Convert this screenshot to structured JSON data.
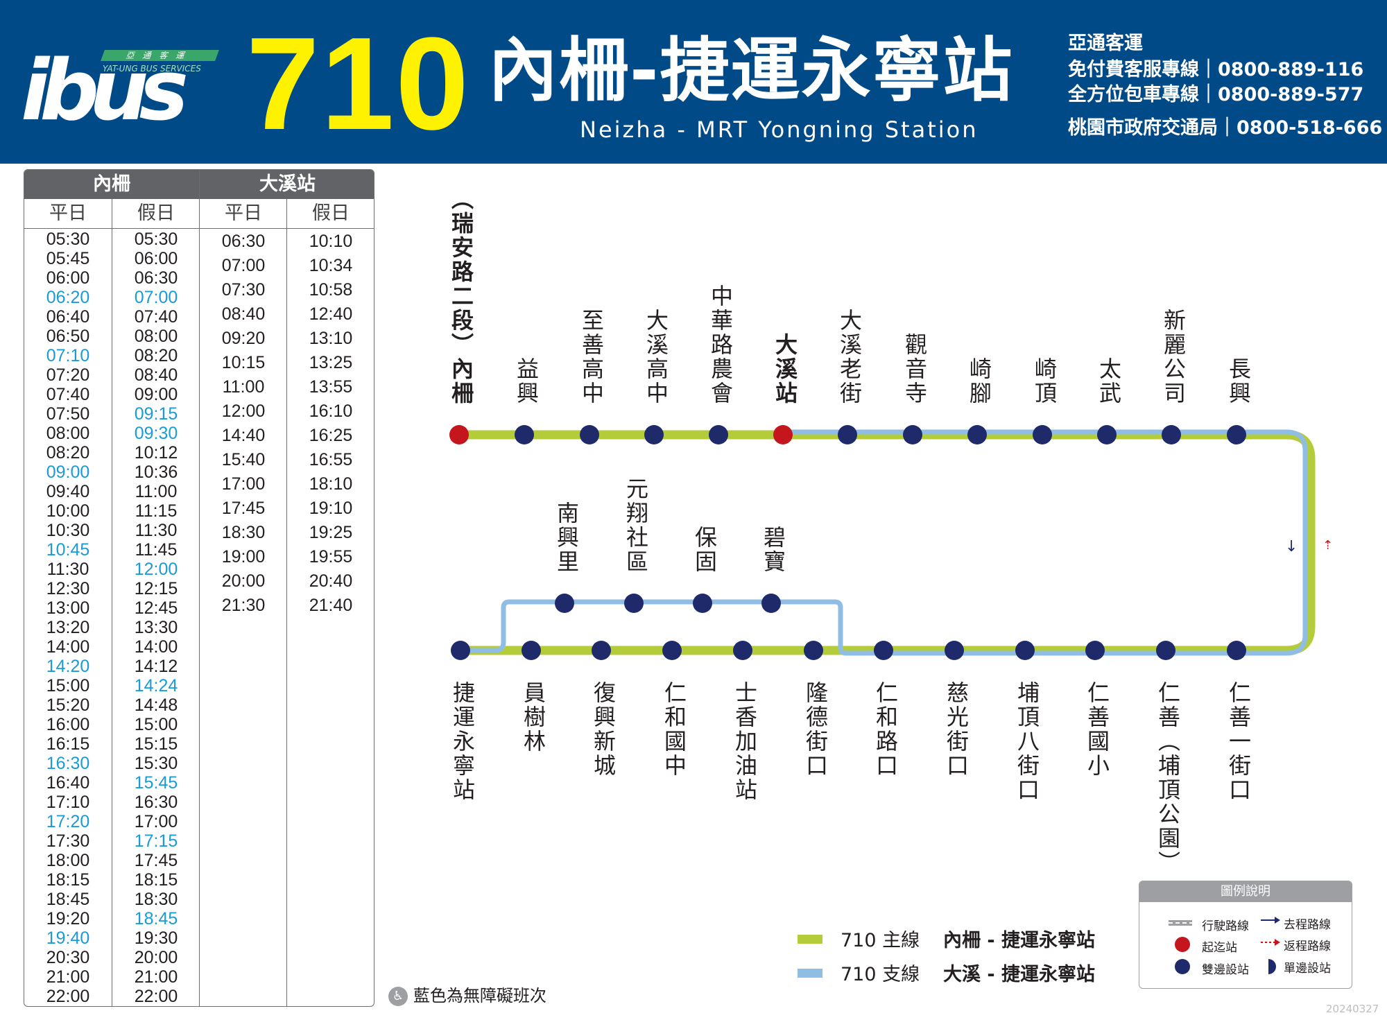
{
  "header": {
    "logo_word": "ibus",
    "logo_tag": "亞通客運",
    "logo_sub": "YAT-UNG BUS SERVICES",
    "route_number": "710",
    "route_title": "內柵-捷運永寧站",
    "route_en": "Neizha - MRT Yongning Station",
    "company": "亞通客運",
    "contacts": [
      "免付費客服專線｜0800-889-116",
      "全方位包車專線｜0800-889-577",
      "桃園市政府交通局｜0800-518-666"
    ]
  },
  "timetable": {
    "origins": [
      "內柵",
      "大溪站"
    ],
    "day_types": [
      "平日",
      "假日",
      "平日",
      "假日"
    ],
    "neizha_weekday": [
      "05:30",
      "05:45",
      "06:00",
      "06:20",
      "06:40",
      "06:50",
      "07:10",
      "07:20",
      "07:40",
      "07:50",
      "08:00",
      "08:20",
      "09:00",
      "09:40",
      "10:00",
      "10:30",
      "10:45",
      "11:30",
      "12:30",
      "13:00",
      "13:20",
      "14:00",
      "14:20",
      "15:00",
      "15:20",
      "16:00",
      "16:15",
      "16:30",
      "16:40",
      "17:10",
      "17:20",
      "17:30",
      "18:00",
      "18:15",
      "18:45",
      "19:20",
      "19:40",
      "20:30",
      "21:00",
      "22:00"
    ],
    "neizha_weekday_accessible": [
      3,
      6,
      12,
      16,
      22,
      27,
      30,
      36
    ],
    "neizha_holiday": [
      "05:30",
      "06:00",
      "06:30",
      "07:00",
      "07:40",
      "08:00",
      "08:20",
      "08:40",
      "09:00",
      "09:15",
      "09:30",
      "10:12",
      "10:36",
      "11:00",
      "11:15",
      "11:30",
      "11:45",
      "12:00",
      "12:15",
      "12:45",
      "13:30",
      "14:00",
      "14:12",
      "14:24",
      "14:48",
      "15:00",
      "15:15",
      "15:30",
      "15:45",
      "16:30",
      "17:00",
      "17:15",
      "17:45",
      "18:15",
      "18:30",
      "18:45",
      "19:30",
      "20:00",
      "21:00",
      "22:00"
    ],
    "neizha_holiday_accessible": [
      3,
      9,
      10,
      17,
      23,
      28,
      31,
      35
    ],
    "daxi_weekday": [
      "06:30",
      "07:00",
      "07:30",
      "08:40",
      "09:20",
      "10:15",
      "11:00",
      "12:00",
      "14:40",
      "15:40",
      "17:00",
      "17:45",
      "18:30",
      "19:00",
      "20:00",
      "21:30"
    ],
    "daxi_holiday": [
      "10:10",
      "10:34",
      "10:58",
      "12:40",
      "13:10",
      "13:25",
      "13:55",
      "16:10",
      "16:25",
      "16:55",
      "18:10",
      "19:10",
      "19:25",
      "19:55",
      "20:40",
      "21:40"
    ]
  },
  "map": {
    "top_stops": [
      "（瑞安路二段）內柵",
      "益興",
      "至善高中",
      "大溪高中",
      "中華路農會",
      "大溪站",
      "大溪老街",
      "觀音寺",
      "崎腳",
      "崎頂",
      "太武",
      "新麗公司",
      "長興"
    ],
    "branch_stops": [
      "南興里",
      "元翔社區",
      "保固",
      "碧寶"
    ],
    "bottom_stops": [
      "捷運永寧站",
      "員樹林",
      "復興新城",
      "仁和國中",
      "士香加油站",
      "隆德街口",
      "仁和路口",
      "慈光街口",
      "埔頂八街口",
      "仁善國小",
      "仁善（埔頂公園）",
      "仁善一街口"
    ],
    "colors": {
      "main": "#b5cc3a",
      "branch": "#8fbde3",
      "stop": "#1f2a6b",
      "terminal": "#c4161c"
    }
  },
  "legend": {
    "main_label": "710 主線",
    "main_desc": "內柵 - 捷運永寧站",
    "branch_label": "710 支線",
    "branch_desc": "大溪 - 捷運永寧站",
    "box_title": "圖例說明",
    "items": [
      "行駛路線",
      "去程路線",
      "起迄站",
      "返程路線",
      "雙邊設站",
      "單邊設站"
    ],
    "accessible_note": "藍色為無障礙班次",
    "date_stamp": "20240327"
  }
}
